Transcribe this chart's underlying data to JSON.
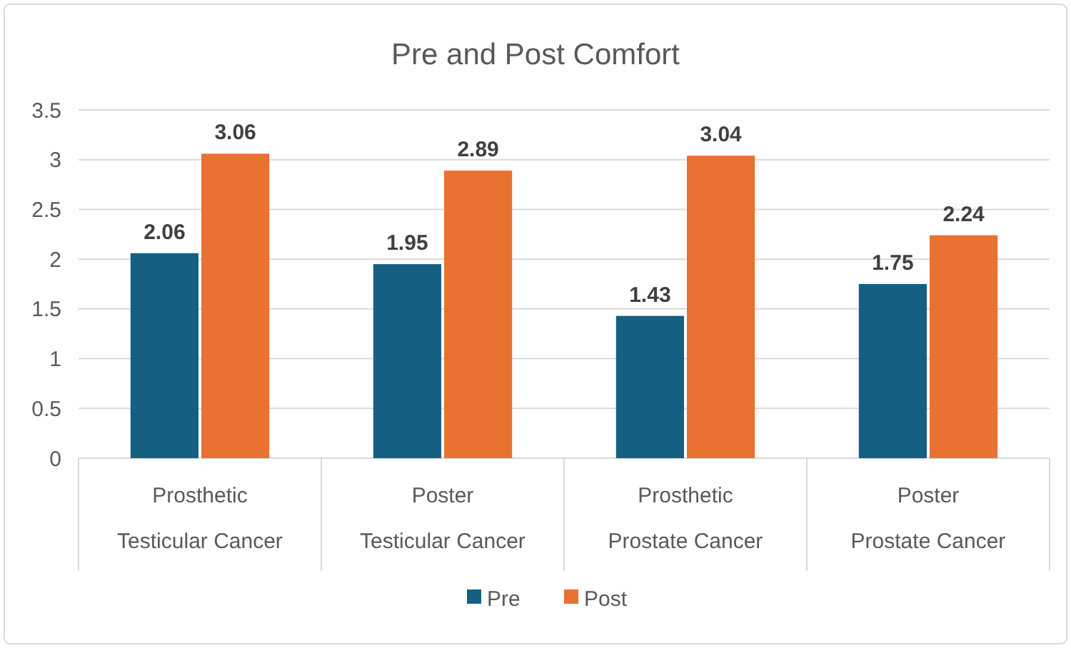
{
  "chart_data": {
    "type": "bar",
    "title": "Pre and Post Comfort",
    "categories": [
      "Prosthetic\nTesticular Cancer",
      "Poster\nTesticular Cancer",
      "Prosthetic\nProstate Cancer",
      "Poster\nProstate Cancer"
    ],
    "series": [
      {
        "name": "Pre",
        "color": "#156082",
        "values": [
          2.06,
          1.95,
          1.43,
          1.75
        ]
      },
      {
        "name": "Post",
        "color": "#e97132",
        "values": [
          3.06,
          2.89,
          3.04,
          2.24
        ]
      }
    ],
    "ylim": [
      0,
      3.5
    ],
    "yticks": [
      0,
      0.5,
      1,
      1.5,
      2,
      2.5,
      3,
      3.5
    ],
    "grid": "y",
    "legend": "bottom",
    "data_labels": true
  }
}
